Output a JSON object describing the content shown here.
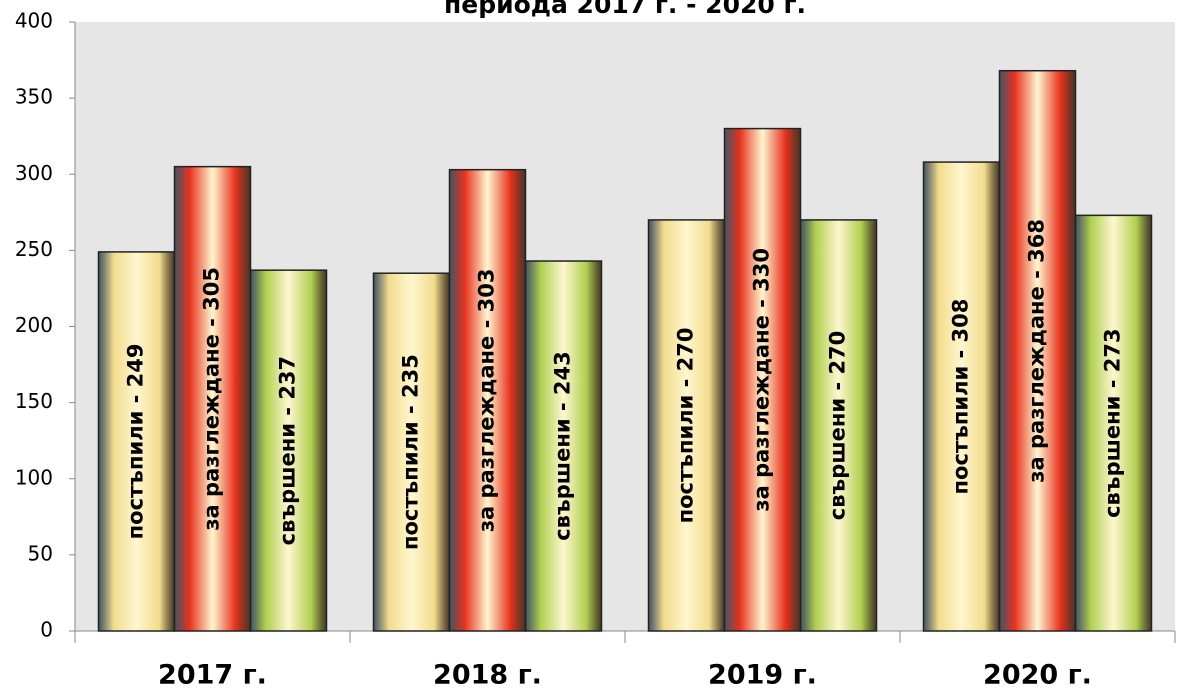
{
  "chart_data": {
    "type": "bar",
    "title": "периода 2017 г. - 2020 г.",
    "categories": [
      "2017 г.",
      "2018 г.",
      "2019 г.",
      "2020 г."
    ],
    "series": [
      {
        "color": "#f2dc8c",
        "values": [
          249,
          235,
          270,
          308
        ],
        "value_labels": [
          "постъпили - 249",
          "постъпили - 235",
          "постъпили - 270",
          "постъпили - 308"
        ]
      },
      {
        "color": "#e8321e",
        "values": [
          305,
          303,
          330,
          368
        ],
        "value_labels": [
          "за разглеждане - 305",
          "за разглеждане - 303",
          "за разглеждане - 330",
          "за разглеждане - 368"
        ]
      },
      {
        "color": "#b0d050",
        "values": [
          237,
          243,
          270,
          273
        ],
        "value_labels": [
          "свършени - 237",
          "свършени - 243",
          "свършени - 270",
          "свършени - 273"
        ]
      }
    ],
    "ylim": [
      0,
      400
    ],
    "yticks": [
      0,
      50,
      100,
      150,
      200,
      250,
      300,
      350,
      400
    ],
    "grid": false
  }
}
